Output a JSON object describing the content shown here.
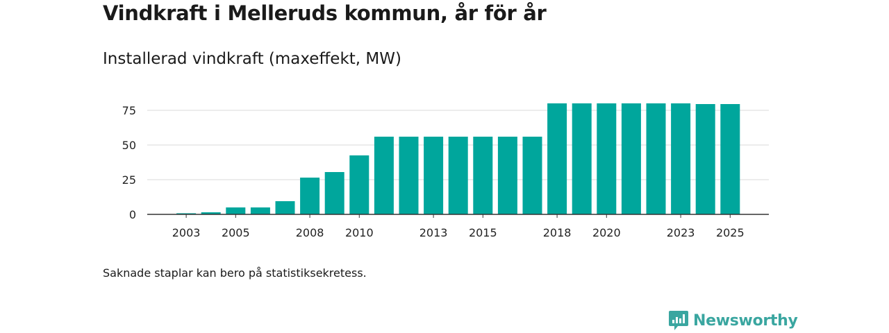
{
  "title": "Vindkraft i Melleruds kommun, år för år",
  "subtitle": "Installerad vindkraft (maxeffekt, MW)",
  "note": "Saknade staplar kan bero på statistiksekretess.",
  "brand": {
    "name": "Newsworthy",
    "color": "#3aa6a0",
    "icon": "newsworthy-logo-icon"
  },
  "colors": {
    "bar": "#00a69c",
    "grid": "#d9d9d9",
    "axis": "#333333"
  },
  "chart_data": {
    "type": "bar",
    "title": "Installerad vindkraft (maxeffekt, MW)",
    "xlabel": "",
    "ylabel": "",
    "categories": [
      "2002",
      "2003",
      "2004",
      "2005",
      "2006",
      "2007",
      "2008",
      "2009",
      "2010",
      "2011",
      "2012",
      "2013",
      "2014",
      "2015",
      "2016",
      "2017",
      "2018",
      "2019",
      "2020",
      "2021",
      "2022",
      "2023",
      "2024",
      "2025"
    ],
    "values": [
      0,
      0.8,
      1.5,
      5,
      5,
      9.5,
      26.5,
      30.5,
      42.5,
      56,
      56,
      56,
      56,
      56,
      56,
      56,
      80,
      80,
      80,
      80,
      80,
      80,
      79.5,
      79.5
    ],
    "x_tick_labels": [
      "2003",
      "2005",
      "2008",
      "2010",
      "2013",
      "2015",
      "2018",
      "2020",
      "2023",
      "2025"
    ],
    "y_ticks": [
      0,
      25,
      50,
      75
    ],
    "ylim": [
      0,
      85
    ],
    "grid": true
  }
}
